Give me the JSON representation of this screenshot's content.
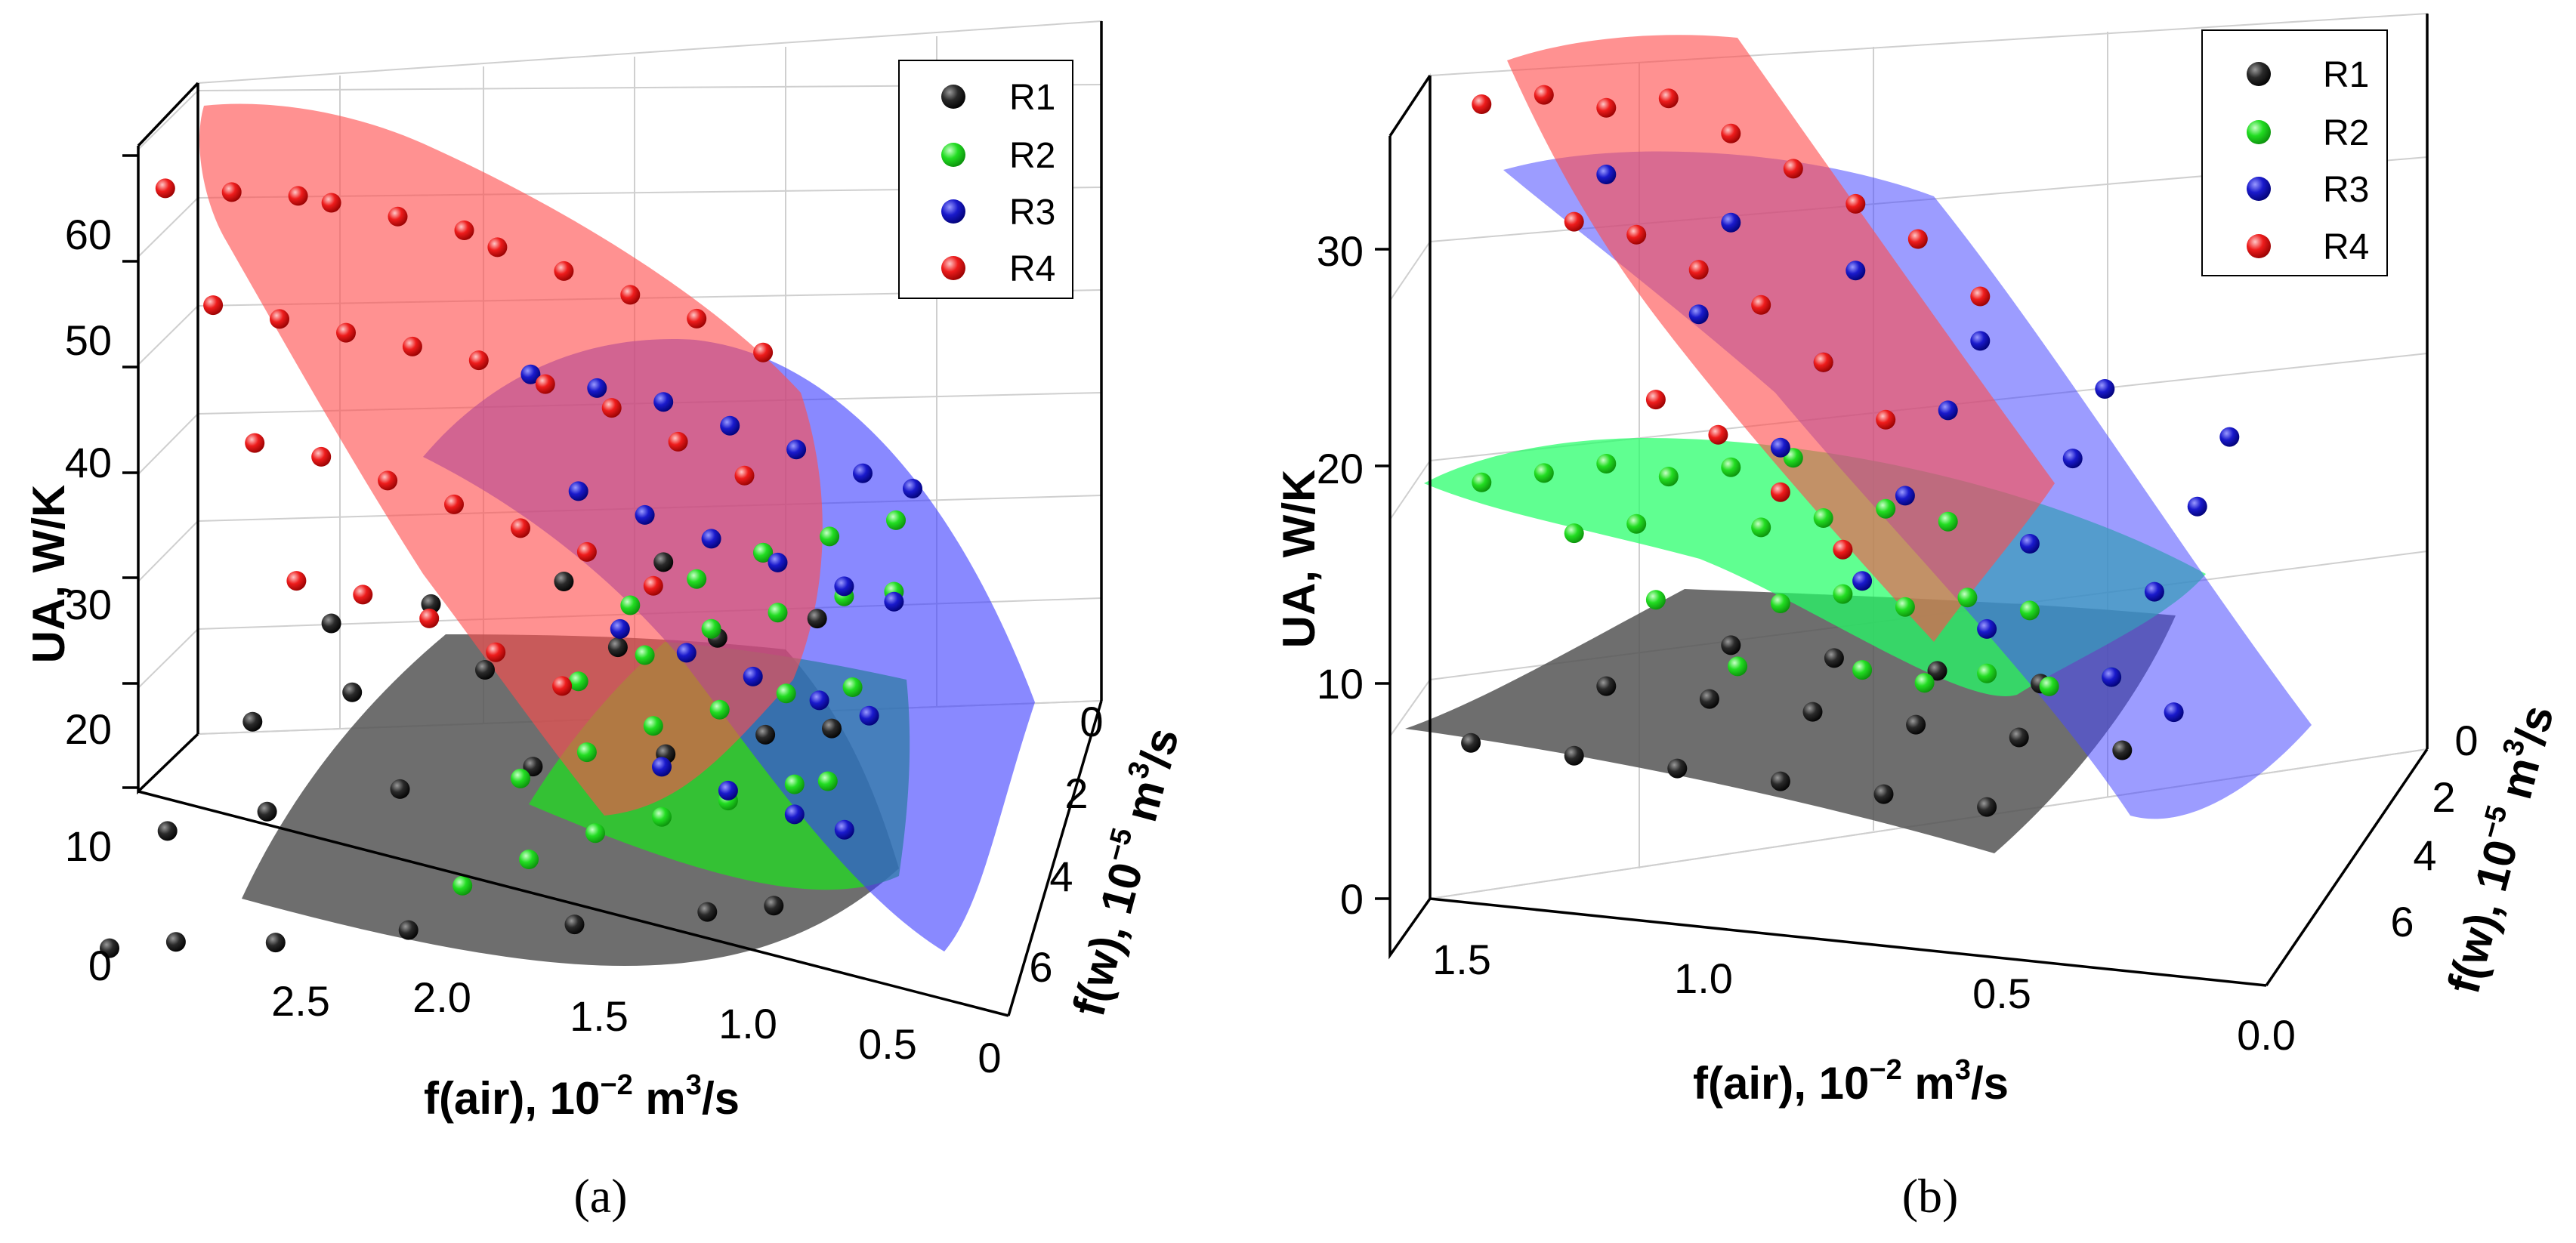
{
  "panels": [
    {
      "caption": "(a)",
      "legend": [
        "R1",
        "R2",
        "R3",
        "R4"
      ],
      "axes": {
        "z": {
          "label": "UA, W/K",
          "ticks": [
            "0",
            "10",
            "20",
            "30",
            "40",
            "50",
            "60"
          ]
        },
        "x": {
          "label": "f(air), 10",
          "exp": "−2",
          "unit": " m",
          "unit_exp": "3",
          "unit_tail": "/s",
          "ticks": [
            "2.5",
            "2.0",
            "1.5",
            "1.0",
            "0.5",
            "0"
          ]
        },
        "y": {
          "label": "f(w), 10",
          "exp": "−5",
          "unit": " m",
          "unit_exp": "3",
          "unit_tail": "/s",
          "ticks": [
            "0",
            "2",
            "4",
            "6"
          ]
        }
      }
    },
    {
      "caption": "(b)",
      "legend": [
        "R1",
        "R2",
        "R3",
        "R4"
      ],
      "axes": {
        "z": {
          "label": "UA, W/K",
          "ticks": [
            "0",
            "10",
            "20",
            "30"
          ]
        },
        "x": {
          "label": "f(air), 10",
          "exp": "−2",
          "unit": " m",
          "unit_exp": "3",
          "unit_tail": "/s",
          "ticks": [
            "1.5",
            "1.0",
            "0.5",
            "0.0"
          ]
        },
        "y": {
          "label": "f(w), 10",
          "exp": "−5",
          "unit": " m",
          "unit_exp": "3",
          "unit_tail": "/s",
          "ticks": [
            "0",
            "2",
            "4",
            "6"
          ]
        }
      }
    }
  ],
  "colors": {
    "R1": "#1a1a1a",
    "R2": "#22dd22",
    "R3": "#1a1acc",
    "R4": "#ee1c1c"
  },
  "chart_data": [
    {
      "type": "scatter",
      "subtype": "3d-scatter-with-fitted-surfaces",
      "title": "",
      "xlabel": "f(air), 10−2 m3/s",
      "ylabel": "f(w), 10−5 m3/s",
      "zlabel": "UA, W/K",
      "xlim": [
        0,
        2.9
      ],
      "ylim": [
        0,
        7.5
      ],
      "zlim": [
        0,
        65
      ],
      "legend": "top-right",
      "grid": true,
      "series": [
        {
          "name": "R1",
          "points": [
            [
              2.8,
              5,
              5
            ],
            [
              2.6,
              5,
              5
            ],
            [
              2.3,
              5,
              4
            ],
            [
              1.9,
              5,
              4
            ],
            [
              1.4,
              5,
              3
            ],
            [
              1.0,
              5,
              3
            ],
            [
              0.8,
              5,
              3
            ],
            [
              2.7,
              3,
              8
            ],
            [
              2.4,
              3,
              9
            ],
            [
              2.0,
              3,
              10
            ],
            [
              1.6,
              3,
              11
            ],
            [
              1.2,
              3,
              11
            ],
            [
              0.9,
              3,
              12
            ],
            [
              0.7,
              3,
              12
            ],
            [
              2.5,
              1.5,
              12
            ],
            [
              2.2,
              1.5,
              14
            ],
            [
              1.8,
              1.5,
              15
            ],
            [
              1.4,
              1.5,
              16
            ],
            [
              1.1,
              1.5,
              16
            ],
            [
              0.8,
              1.5,
              17
            ],
            [
              2.3,
              0.5,
              17
            ],
            [
              2.0,
              0.5,
              18
            ],
            [
              1.6,
              0.5,
              19
            ],
            [
              1.3,
              0.5,
              20
            ],
            [
              1.0,
              0.5,
              20
            ]
          ]
        },
        {
          "name": "R2",
          "points": [
            [
              1.7,
              6,
              12
            ],
            [
              1.5,
              6,
              14
            ],
            [
              1.3,
              6,
              16
            ],
            [
              1.1,
              6,
              17
            ],
            [
              0.9,
              6,
              18
            ],
            [
              0.7,
              6,
              19
            ],
            [
              0.6,
              6,
              19
            ],
            [
              1.6,
              4,
              14
            ],
            [
              1.4,
              4,
              16
            ],
            [
              1.2,
              4,
              18
            ],
            [
              1.0,
              4,
              19
            ],
            [
              0.8,
              4,
              20
            ],
            [
              0.6,
              4,
              20
            ],
            [
              1.5,
              2,
              15
            ],
            [
              1.3,
              2,
              17
            ],
            [
              1.1,
              2,
              19
            ],
            [
              0.9,
              2,
              20
            ],
            [
              0.7,
              2,
              21
            ],
            [
              0.55,
              2,
              21
            ],
            [
              1.4,
              0.5,
              16
            ],
            [
              1.2,
              0.5,
              18
            ],
            [
              1.0,
              0.5,
              20
            ],
            [
              0.8,
              0.5,
              21
            ],
            [
              0.6,
              0.5,
              22
            ]
          ]
        },
        {
          "name": "R3",
          "points": [
            [
              1.7,
              0.5,
              40
            ],
            [
              1.5,
              0.5,
              38
            ],
            [
              1.3,
              0.5,
              36
            ],
            [
              1.1,
              0.5,
              33
            ],
            [
              0.9,
              0.5,
              30
            ],
            [
              0.7,
              0.5,
              27
            ],
            [
              0.55,
              0.5,
              25
            ],
            [
              1.5,
              2,
              34
            ],
            [
              1.3,
              2,
              31
            ],
            [
              1.1,
              2,
              28
            ],
            [
              0.9,
              2,
              25
            ],
            [
              0.7,
              2,
              22
            ],
            [
              0.55,
              2,
              20
            ],
            [
              1.3,
              4,
              28
            ],
            [
              1.1,
              4,
              25
            ],
            [
              0.9,
              4,
              22
            ],
            [
              0.7,
              4,
              19
            ],
            [
              0.55,
              4,
              17
            ],
            [
              1.1,
              6,
              22
            ],
            [
              0.9,
              6,
              19
            ],
            [
              0.7,
              6,
              16
            ],
            [
              0.55,
              6,
              14
            ]
          ]
        },
        {
          "name": "R4",
          "points": [
            [
              2.8,
              0.5,
              62
            ],
            [
              2.6,
              0.5,
              61
            ],
            [
              2.4,
              0.5,
              60
            ],
            [
              2.3,
              0.5,
              59
            ],
            [
              2.1,
              0.5,
              57
            ],
            [
              1.9,
              0.5,
              55
            ],
            [
              1.8,
              0.5,
              53
            ],
            [
              1.6,
              0.5,
              50
            ],
            [
              1.4,
              0.5,
              47
            ],
            [
              1.2,
              0.5,
              44
            ],
            [
              1.0,
              0.5,
              40
            ],
            [
              2.6,
              2,
              56
            ],
            [
              2.4,
              2,
              54
            ],
            [
              2.2,
              2,
              52
            ],
            [
              2.0,
              2,
              50
            ],
            [
              1.8,
              2,
              48
            ],
            [
              1.6,
              2,
              45
            ],
            [
              1.4,
              2,
              42
            ],
            [
              1.2,
              2,
              38
            ],
            [
              1.0,
              2,
              34
            ],
            [
              2.4,
              4,
              50
            ],
            [
              2.2,
              4,
              48
            ],
            [
              2.0,
              4,
              45
            ],
            [
              1.8,
              4,
              42
            ],
            [
              1.6,
              4,
              39
            ],
            [
              1.4,
              4,
              36
            ],
            [
              1.2,
              4,
              32
            ],
            [
              2.2,
              6,
              44
            ],
            [
              2.0,
              6,
              42
            ],
            [
              1.8,
              6,
              39
            ],
            [
              1.6,
              6,
              35
            ],
            [
              1.4,
              6,
              31
            ]
          ]
        }
      ]
    },
    {
      "type": "scatter",
      "subtype": "3d-scatter-with-fitted-surfaces",
      "title": "",
      "xlabel": "f(air), 10−2 m3/s",
      "ylabel": "f(w), 10−5 m3/s",
      "zlabel": "UA, W/K",
      "xlim": [
        0,
        1.6
      ],
      "ylim": [
        0,
        7.5
      ],
      "zlim": [
        0,
        37
      ],
      "legend": "top-right",
      "grid": true,
      "series": [
        {
          "name": "R1",
          "points": [
            [
              1.5,
              1,
              8
            ],
            [
              1.3,
              2,
              8
            ],
            [
              1.1,
              3,
              8
            ],
            [
              0.9,
              4,
              8
            ],
            [
              0.7,
              5,
              8
            ],
            [
              0.5,
              6,
              8
            ],
            [
              1.3,
              0.5,
              9
            ],
            [
              1.1,
              1.5,
              9
            ],
            [
              0.9,
              2.5,
              9
            ],
            [
              0.7,
              3.5,
              9
            ],
            [
              0.5,
              4.5,
              9
            ],
            [
              0.3,
              5.5,
              9
            ],
            [
              1.1,
              0.5,
              10
            ],
            [
              0.9,
              1.5,
              10
            ],
            [
              0.7,
              2.5,
              10
            ],
            [
              0.5,
              3.5,
              10
            ]
          ]
        },
        {
          "name": "R2",
          "points": [
            [
              1.5,
              0.5,
              19
            ],
            [
              1.4,
              0.5,
              19
            ],
            [
              1.3,
              0.5,
              19
            ],
            [
              1.2,
              0.5,
              18
            ],
            [
              1.1,
              0.5,
              18
            ],
            [
              1.0,
              0.5,
              18
            ],
            [
              1.3,
              2,
              18
            ],
            [
              1.2,
              2,
              18
            ],
            [
              1.0,
              2,
              17
            ],
            [
              0.9,
              2,
              17
            ],
            [
              0.8,
              2,
              17
            ],
            [
              0.7,
              2,
              16
            ],
            [
              1.1,
              4,
              17
            ],
            [
              0.9,
              4,
              16
            ],
            [
              0.8,
              4,
              16
            ],
            [
              0.7,
              4,
              15
            ],
            [
              0.6,
              4,
              15
            ],
            [
              0.5,
              4,
              14
            ],
            [
              0.9,
              6,
              16
            ],
            [
              0.7,
              6,
              15
            ],
            [
              0.6,
              6,
              14
            ],
            [
              0.5,
              6,
              14
            ],
            [
              0.4,
              6,
              13
            ],
            [
              0.3,
              6,
              13
            ]
          ]
        },
        {
          "name": "R3",
          "points": [
            [
              1.3,
              0.5,
              32
            ],
            [
              1.1,
              0.5,
              29
            ],
            [
              0.9,
              0.5,
              26
            ],
            [
              0.7,
              0.5,
              22
            ],
            [
              0.5,
              0.5,
              19
            ],
            [
              0.3,
              0.5,
              16
            ],
            [
              1.1,
              2,
              27
            ],
            [
              0.9,
              2,
              24
            ],
            [
              0.7,
              2,
              21
            ],
            [
              0.5,
              2,
              18
            ],
            [
              0.3,
              2,
              15
            ],
            [
              0.9,
              4,
              23
            ],
            [
              0.7,
              4,
              20
            ],
            [
              0.5,
              4,
              17
            ],
            [
              0.3,
              4,
              14
            ],
            [
              0.7,
              6,
              19
            ],
            [
              0.5,
              6,
              16
            ],
            [
              0.3,
              6,
              13
            ],
            [
              0.2,
              6,
              11
            ]
          ]
        },
        {
          "name": "R4",
          "points": [
            [
              1.5,
              0.5,
              36
            ],
            [
              1.4,
              0.5,
              36
            ],
            [
              1.3,
              0.5,
              35
            ],
            [
              1.2,
              0.5,
              35
            ],
            [
              1.1,
              0.5,
              33
            ],
            [
              1.0,
              0.5,
              31
            ],
            [
              0.9,
              0.5,
              29
            ],
            [
              0.8,
              0.5,
              27
            ],
            [
              0.7,
              0.5,
              24
            ],
            [
              1.3,
              2,
              32
            ],
            [
              1.2,
              2,
              31
            ],
            [
              1.1,
              2,
              29
            ],
            [
              1.0,
              2,
              27
            ],
            [
              0.9,
              2,
              24
            ],
            [
              0.8,
              2,
              21
            ],
            [
              1.1,
              4,
              26
            ],
            [
              1.0,
              4,
              24
            ],
            [
              0.9,
              4,
              21
            ],
            [
              0.8,
              4,
              18
            ]
          ]
        }
      ]
    }
  ]
}
